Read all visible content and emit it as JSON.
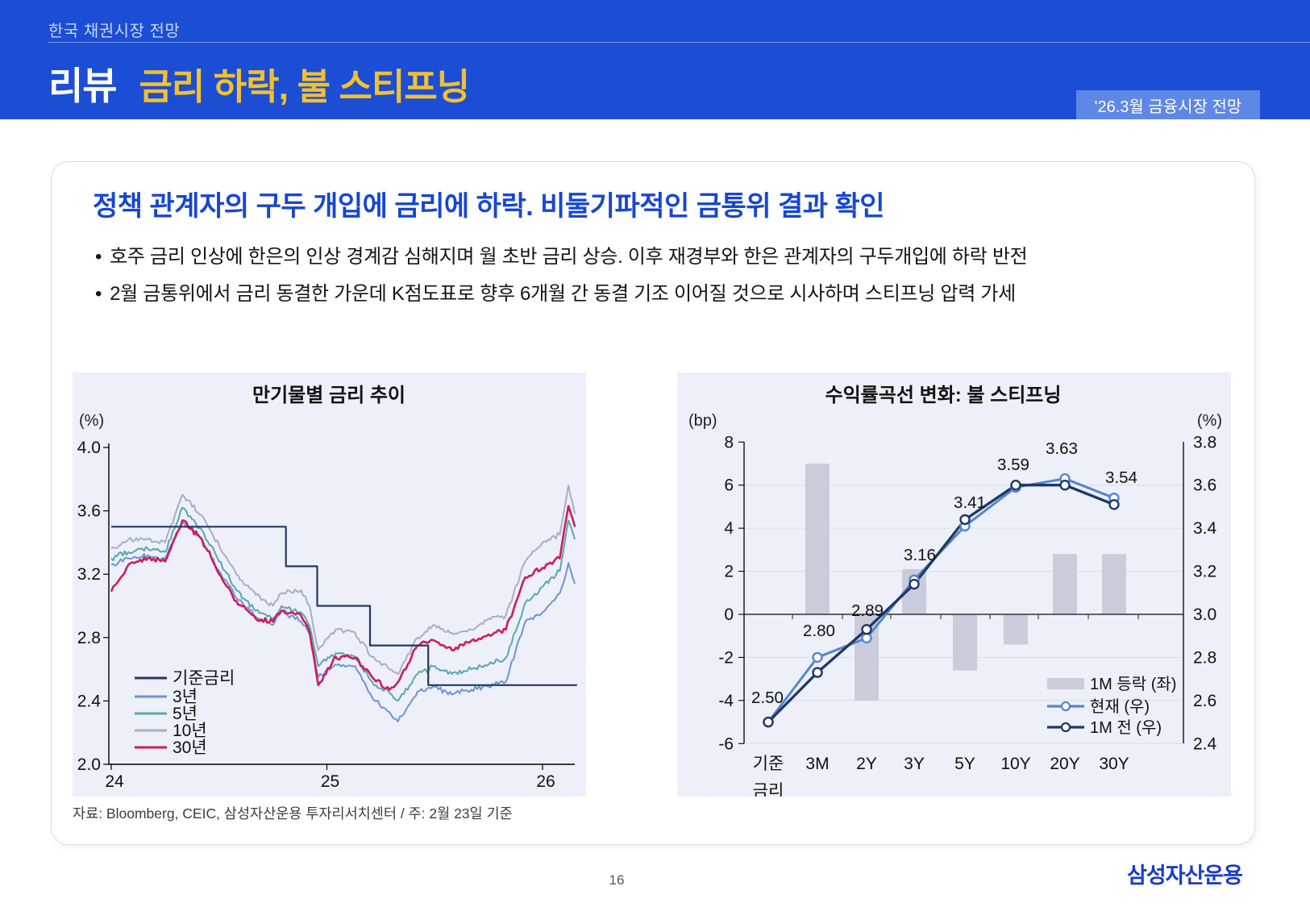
{
  "header": {
    "eyebrow": "한국 채권시장 전망",
    "title_prefix": "리뷰",
    "title_main": "금리 하락, 불 스티프닝",
    "badge": "'26.3월 금융시장 전망"
  },
  "colors": {
    "header_bg": "#1B4ED4",
    "badge_bg": "#5F87E6",
    "title_yellow": "#F3C02F",
    "heading_blue": "#1747D1",
    "panel_bg": "#EDEFF9",
    "grid_gray": "#D9DBE5",
    "bar_gray": "#C9CCDB",
    "logo_blue": "#1A3EC8"
  },
  "main": {
    "heading": "정책 관계자의 구두 개입에 금리에 하락. 비둘기파적인 금통위 결과 확인",
    "bullets": [
      "호주 금리 인상에 한은의 인상 경계감 심해지며 월 초반 금리 상승. 이후 재경부와 한은 관계자의 구두개입에 하락 반전",
      "2월 금통위에서 금리 동결한 가운데 K점도표로 향후 6개월 간 동결 기조 이어질 것으로 시사하며 스티프닝 압력 가세"
    ]
  },
  "source_note": "자료: Bloomberg, CEIC, 삼성자산운용 투자리서치센터 / 주: 2월 23일 기준",
  "footer": {
    "page_number": "16",
    "logo": "삼성자산운용"
  },
  "chart_data": [
    {
      "type": "line",
      "title": "만기물별 금리 추이",
      "unit_label": "(%)",
      "ylim": [
        2.0,
        4.0
      ],
      "yticks": [
        4.0,
        3.6,
        3.2,
        2.8,
        2.4,
        2.0
      ],
      "xticks": [
        24,
        25,
        26
      ],
      "xlim": [
        24.0,
        26.16
      ],
      "grid": false,
      "legend_position": "lower-left",
      "series": [
        {
          "name": "기준금리",
          "color": "#24395E",
          "step": true,
          "points": [
            [
              24.0,
              3.5
            ],
            [
              24.81,
              3.5
            ],
            [
              24.81,
              3.25
            ],
            [
              24.955,
              3.25
            ],
            [
              24.955,
              3.0
            ],
            [
              25.2,
              3.0
            ],
            [
              25.2,
              2.75
            ],
            [
              25.47,
              2.75
            ],
            [
              25.47,
              2.5
            ],
            [
              26.16,
              2.5
            ]
          ]
        },
        {
          "name": "3년",
          "color": "#6D94D3",
          "step": false,
          "points": [
            [
              24.0,
              3.26
            ],
            [
              24.08,
              3.3
            ],
            [
              24.17,
              3.32
            ],
            [
              24.25,
              3.3
            ],
            [
              24.33,
              3.53
            ],
            [
              24.42,
              3.42
            ],
            [
              24.5,
              3.22
            ],
            [
              24.58,
              3.05
            ],
            [
              24.67,
              2.93
            ],
            [
              24.75,
              2.88
            ],
            [
              24.79,
              2.97
            ],
            [
              24.88,
              2.9
            ],
            [
              24.92,
              2.82
            ],
            [
              24.96,
              2.55
            ],
            [
              25.04,
              2.63
            ],
            [
              25.13,
              2.62
            ],
            [
              25.21,
              2.42
            ],
            [
              25.29,
              2.33
            ],
            [
              25.33,
              2.27
            ],
            [
              25.42,
              2.46
            ],
            [
              25.5,
              2.49
            ],
            [
              25.58,
              2.44
            ],
            [
              25.67,
              2.47
            ],
            [
              25.75,
              2.49
            ],
            [
              25.83,
              2.52
            ],
            [
              25.92,
              2.9
            ],
            [
              26.0,
              2.96
            ],
            [
              26.08,
              3.08
            ],
            [
              26.12,
              3.27
            ],
            [
              26.15,
              3.14
            ]
          ]
        },
        {
          "name": "5년",
          "color": "#58A7AE",
          "step": false,
          "points": [
            [
              24.0,
              3.3
            ],
            [
              24.08,
              3.34
            ],
            [
              24.17,
              3.36
            ],
            [
              24.25,
              3.34
            ],
            [
              24.33,
              3.62
            ],
            [
              24.42,
              3.48
            ],
            [
              24.5,
              3.28
            ],
            [
              24.58,
              3.1
            ],
            [
              24.67,
              2.97
            ],
            [
              24.75,
              2.92
            ],
            [
              24.79,
              3.0
            ],
            [
              24.88,
              2.96
            ],
            [
              24.92,
              2.87
            ],
            [
              24.96,
              2.62
            ],
            [
              25.04,
              2.7
            ],
            [
              25.13,
              2.68
            ],
            [
              25.21,
              2.52
            ],
            [
              25.29,
              2.45
            ],
            [
              25.33,
              2.4
            ],
            [
              25.42,
              2.57
            ],
            [
              25.5,
              2.62
            ],
            [
              25.58,
              2.57
            ],
            [
              25.67,
              2.6
            ],
            [
              25.75,
              2.63
            ],
            [
              25.83,
              2.67
            ],
            [
              25.92,
              3.02
            ],
            [
              26.0,
              3.12
            ],
            [
              26.08,
              3.22
            ],
            [
              26.12,
              3.54
            ],
            [
              26.15,
              3.42
            ]
          ]
        },
        {
          "name": "10년",
          "color": "#A9ADC6",
          "step": false,
          "points": [
            [
              24.0,
              3.36
            ],
            [
              24.08,
              3.42
            ],
            [
              24.17,
              3.42
            ],
            [
              24.25,
              3.4
            ],
            [
              24.33,
              3.7
            ],
            [
              24.42,
              3.57
            ],
            [
              24.5,
              3.38
            ],
            [
              24.58,
              3.2
            ],
            [
              24.67,
              3.07
            ],
            [
              24.75,
              3.0
            ],
            [
              24.79,
              3.08
            ],
            [
              24.88,
              3.1
            ],
            [
              24.92,
              3.0
            ],
            [
              24.96,
              2.72
            ],
            [
              25.04,
              2.85
            ],
            [
              25.13,
              2.83
            ],
            [
              25.21,
              2.68
            ],
            [
              25.29,
              2.6
            ],
            [
              25.33,
              2.57
            ],
            [
              25.42,
              2.8
            ],
            [
              25.5,
              2.88
            ],
            [
              25.58,
              2.83
            ],
            [
              25.67,
              2.85
            ],
            [
              25.75,
              2.92
            ],
            [
              25.83,
              2.94
            ],
            [
              25.92,
              3.28
            ],
            [
              26.0,
              3.4
            ],
            [
              26.08,
              3.45
            ],
            [
              26.12,
              3.76
            ],
            [
              26.15,
              3.58
            ]
          ]
        },
        {
          "name": "30년",
          "color": "#CC1D5F",
          "step": false,
          "points": [
            [
              24.0,
              3.09
            ],
            [
              24.08,
              3.26
            ],
            [
              24.17,
              3.3
            ],
            [
              24.25,
              3.28
            ],
            [
              24.33,
              3.54
            ],
            [
              24.42,
              3.42
            ],
            [
              24.5,
              3.2
            ],
            [
              24.58,
              3.03
            ],
            [
              24.67,
              2.92
            ],
            [
              24.75,
              2.9
            ],
            [
              24.79,
              2.97
            ],
            [
              24.88,
              2.94
            ],
            [
              24.92,
              2.83
            ],
            [
              24.96,
              2.5
            ],
            [
              25.04,
              2.68
            ],
            [
              25.13,
              2.67
            ],
            [
              25.21,
              2.55
            ],
            [
              25.29,
              2.47
            ],
            [
              25.33,
              2.52
            ],
            [
              25.42,
              2.75
            ],
            [
              25.5,
              2.78
            ],
            [
              25.58,
              2.72
            ],
            [
              25.67,
              2.78
            ],
            [
              25.75,
              2.82
            ],
            [
              25.83,
              2.85
            ],
            [
              25.92,
              3.18
            ],
            [
              26.0,
              3.24
            ],
            [
              26.08,
              3.3
            ],
            [
              26.12,
              3.63
            ],
            [
              26.15,
              3.5
            ]
          ]
        }
      ]
    },
    {
      "type": "bar",
      "subtype": "combo-bar-line",
      "title": "수익률곡선 변화: 불 스티프닝",
      "left_axis": {
        "unit": "(bp)",
        "lim": [
          -6,
          8
        ],
        "ticks": [
          8,
          6,
          4,
          2,
          0,
          -2,
          -4,
          -6
        ]
      },
      "right_axis": {
        "unit": "(%)",
        "lim": [
          2.4,
          3.8
        ],
        "ticks": [
          3.8,
          3.6,
          3.4,
          3.2,
          3.0,
          2.8,
          2.6,
          2.4
        ]
      },
      "categories": [
        "기준\n금리",
        "3M",
        "2Y",
        "3Y",
        "5Y",
        "10Y",
        "20Y",
        "30Y"
      ],
      "bars": {
        "name": "1M 등락 (좌)",
        "color": "#C9CCDB",
        "axis": "left",
        "values": [
          0,
          7,
          -4,
          2.1,
          -2.6,
          -1.4,
          2.8,
          2.8
        ]
      },
      "lines": [
        {
          "name": "현재 (우)",
          "color": "#5585D0",
          "axis": "right",
          "values": [
            2.5,
            2.8,
            2.89,
            3.16,
            3.41,
            3.59,
            3.63,
            3.54
          ],
          "labeled": true
        },
        {
          "name": "1M 전 (우)",
          "color": "#1F3864",
          "axis": "right",
          "values": [
            2.5,
            2.73,
            2.93,
            3.14,
            3.44,
            3.6,
            3.6,
            3.51
          ],
          "labeled": false
        }
      ],
      "legend_position": "lower-right"
    }
  ]
}
